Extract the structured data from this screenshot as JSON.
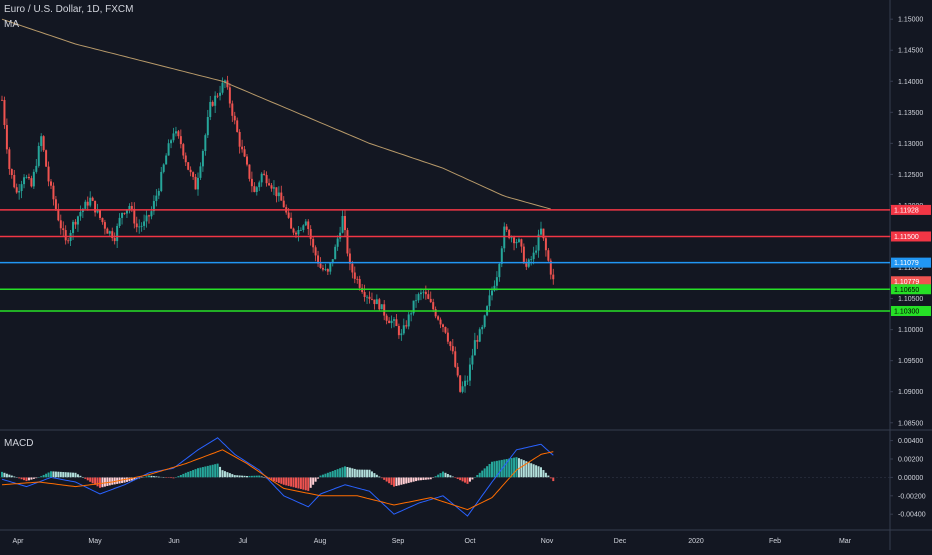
{
  "header": {
    "symbol": "Euro / U.S. Dollar, 1D, FXCM",
    "indicator": "MA",
    "macd_label": "MACD"
  },
  "colors": {
    "background": "#131722",
    "grid": "#363c4e",
    "text": "#d1d4dc",
    "up": "#26a69a",
    "down": "#ef5350",
    "ma": "#b89a6a",
    "red_line": "#f23645",
    "blue_line": "#2196f3",
    "green_line": "#26e026",
    "macd_line": "#2962ff",
    "signal_line": "#ff6d00",
    "hist_pos_strong": "#26a69a",
    "hist_pos_weak": "#b2dfdb",
    "hist_neg_strong": "#ef5350",
    "hist_neg_weak": "#ffcdd2"
  },
  "chart_data": [
    {
      "type": "candlestick",
      "title": "Euro / U.S. Dollar, 1D, FXCM",
      "y_axis_ticks": [
        "1.15000",
        "1.14500",
        "1.14000",
        "1.13500",
        "1.13000",
        "1.12500",
        "1.12000",
        "1.11500",
        "1.11000",
        "1.10500",
        "1.10000",
        "1.09500",
        "1.09000",
        "1.08500"
      ],
      "ylim": [
        1.0848,
        1.1518
      ],
      "x_axis_ticks": [
        "Apr",
        "May",
        "Jun",
        "Jul",
        "Aug",
        "Sep",
        "Oct",
        "Nov",
        "Dec",
        "2020",
        "Feb",
        "Mar"
      ],
      "grid": false,
      "price_path": [
        [
          0,
          1.137
        ],
        [
          3,
          1.126
        ],
        [
          6,
          1.122
        ],
        [
          9,
          1.125
        ],
        [
          12,
          1.123
        ],
        [
          16,
          1.131
        ],
        [
          19,
          1.124
        ],
        [
          23,
          1.118
        ],
        [
          26,
          1.114
        ],
        [
          29,
          1.117
        ],
        [
          32,
          1.119
        ],
        [
          36,
          1.121
        ],
        [
          40,
          1.118
        ],
        [
          43,
          1.116
        ],
        [
          46,
          1.115
        ],
        [
          49,
          1.119
        ],
        [
          52,
          1.12
        ],
        [
          55,
          1.1165
        ],
        [
          58,
          1.117
        ],
        [
          61,
          1.119
        ],
        [
          64,
          1.123
        ],
        [
          67,
          1.128
        ],
        [
          70,
          1.132
        ],
        [
          73,
          1.13
        ],
        [
          76,
          1.126
        ],
        [
          79,
          1.123
        ],
        [
          82,
          1.129
        ],
        [
          85,
          1.136
        ],
        [
          88,
          1.138
        ],
        [
          91,
          1.14
        ],
        [
          94,
          1.135
        ],
        [
          97,
          1.13
        ],
        [
          100,
          1.126
        ],
        [
          103,
          1.122
        ],
        [
          106,
          1.125
        ],
        [
          109,
          1.124
        ],
        [
          112,
          1.122
        ],
        [
          115,
          1.12
        ],
        [
          118,
          1.116
        ],
        [
          121,
          1.116
        ],
        [
          124,
          1.118
        ],
        [
          127,
          1.113
        ],
        [
          130,
          1.11
        ],
        [
          133,
          1.109
        ],
        [
          136,
          1.113
        ],
        [
          139,
          1.118
        ],
        [
          142,
          1.11
        ],
        [
          145,
          1.108
        ],
        [
          148,
          1.106
        ],
        [
          151,
          1.105
        ],
        [
          154,
          1.104
        ],
        [
          157,
          1.102
        ],
        [
          160,
          1.101
        ],
        [
          163,
          1.099
        ],
        [
          166,
          1.102
        ],
        [
          169,
          1.105
        ],
        [
          172,
          1.106
        ],
        [
          175,
          1.104
        ],
        [
          178,
          1.102
        ],
        [
          181,
          1.1
        ],
        [
          184,
          1.096
        ],
        [
          187,
          1.09
        ],
        [
          190,
          1.092
        ],
        [
          193,
          1.098
        ],
        [
          196,
          1.1
        ],
        [
          199,
          1.105
        ],
        [
          202,
          1.109
        ],
        [
          205,
          1.116
        ],
        [
          208,
          1.115
        ],
        [
          211,
          1.114
        ],
        [
          214,
          1.11
        ],
        [
          217,
          1.112
        ],
        [
          220,
          1.116
        ],
        [
          223,
          1.111
        ],
        [
          225,
          1.1078
        ]
      ],
      "total_bars": 226,
      "ma_path": [
        [
          0,
          1.15
        ],
        [
          30,
          1.146
        ],
        [
          60,
          1.143
        ],
        [
          90,
          1.14
        ],
        [
          120,
          1.135
        ],
        [
          150,
          1.13
        ],
        [
          180,
          1.126
        ],
        [
          205,
          1.1215
        ],
        [
          225,
          1.1193
        ]
      ],
      "horizontal_lines": [
        {
          "price": 1.11928,
          "label": "1.11928",
          "color": "red"
        },
        {
          "price": 1.115,
          "label": "1.11500",
          "color": "red"
        },
        {
          "price": 1.11079,
          "label": "1.11079",
          "color": "blue"
        },
        {
          "price": 1.10779,
          "label": "1.10779",
          "color": "current"
        },
        {
          "price": 1.1065,
          "label": "1.10650",
          "color": "green"
        },
        {
          "price": 1.103,
          "label": "1.10300",
          "color": "green"
        }
      ]
    },
    {
      "type": "macd",
      "title": "MACD",
      "y_axis_ticks": [
        "0.00400",
        "0.00200",
        "0.00000",
        "-0.00200",
        "-0.00400"
      ],
      "ylim": [
        -0.0055,
        0.0045
      ],
      "macd_path": [
        [
          0,
          -0.0002
        ],
        [
          10,
          -0.001
        ],
        [
          20,
          0.0
        ],
        [
          30,
          -0.0005
        ],
        [
          40,
          -0.0018
        ],
        [
          50,
          -0.0008
        ],
        [
          60,
          0.0005
        ],
        [
          70,
          0.001
        ],
        [
          80,
          0.003
        ],
        [
          88,
          0.0043
        ],
        [
          95,
          0.0025
        ],
        [
          105,
          0.0008
        ],
        [
          115,
          -0.002
        ],
        [
          125,
          -0.0032
        ],
        [
          130,
          -0.0018
        ],
        [
          140,
          -0.0008
        ],
        [
          150,
          -0.0015
        ],
        [
          160,
          -0.004
        ],
        [
          170,
          -0.0028
        ],
        [
          180,
          -0.002
        ],
        [
          190,
          -0.0042
        ],
        [
          200,
          -0.0005
        ],
        [
          210,
          0.003
        ],
        [
          220,
          0.0036
        ],
        [
          225,
          0.0024
        ]
      ],
      "signal_path": [
        [
          0,
          -0.0008
        ],
        [
          15,
          -0.0005
        ],
        [
          30,
          -0.001
        ],
        [
          45,
          -0.0005
        ],
        [
          60,
          0.0003
        ],
        [
          75,
          0.0015
        ],
        [
          90,
          0.003
        ],
        [
          100,
          0.0015
        ],
        [
          115,
          -0.0012
        ],
        [
          130,
          -0.002
        ],
        [
          145,
          -0.002
        ],
        [
          160,
          -0.003
        ],
        [
          175,
          -0.0022
        ],
        [
          190,
          -0.0035
        ],
        [
          200,
          -0.0022
        ],
        [
          210,
          0.0008
        ],
        [
          220,
          0.0025
        ],
        [
          225,
          0.0028
        ]
      ]
    }
  ]
}
